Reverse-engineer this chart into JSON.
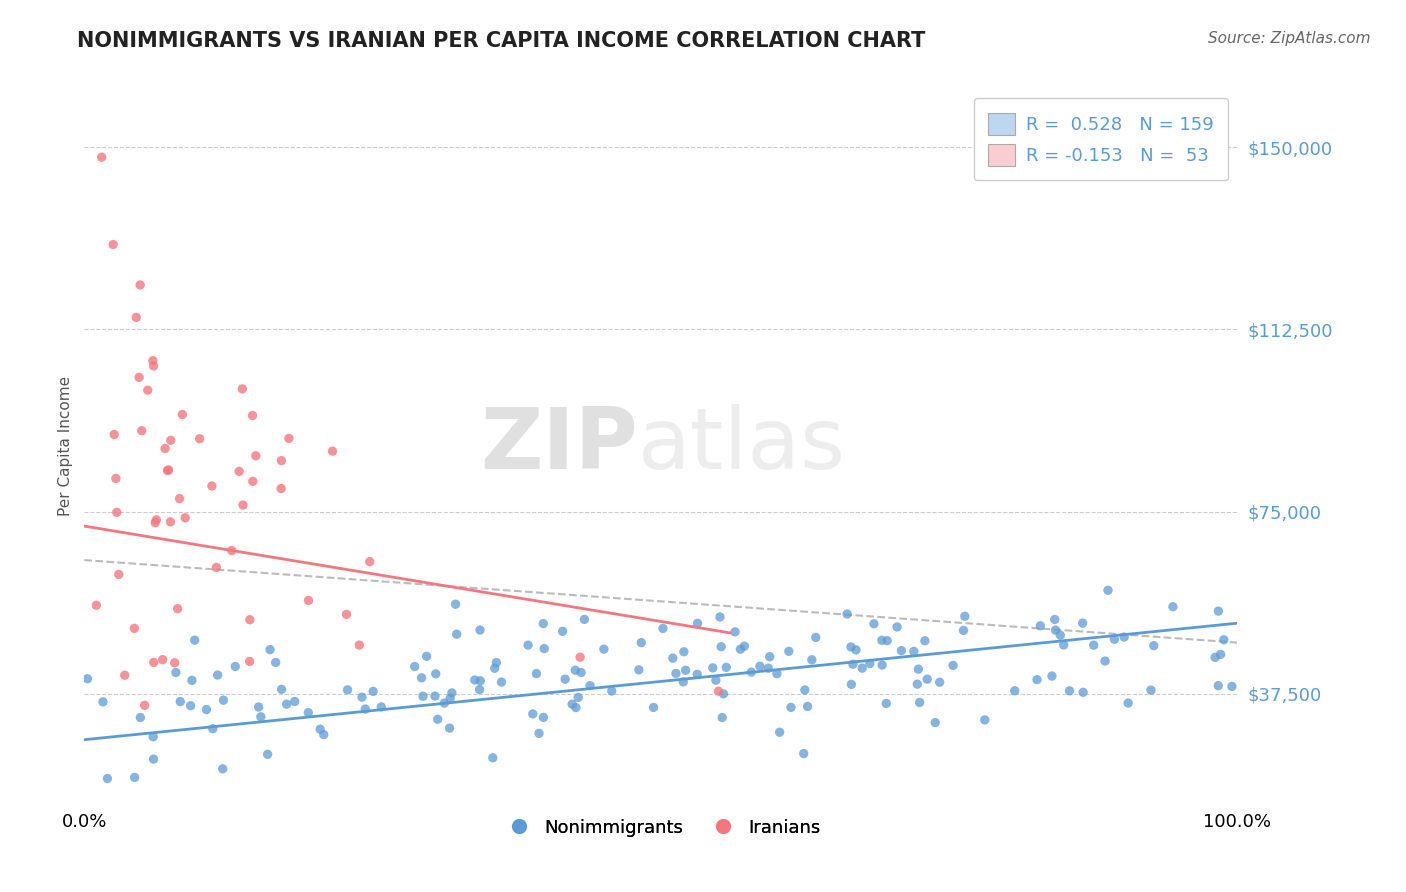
{
  "title": "NONIMMIGRANTS VS IRANIAN PER CAPITA INCOME CORRELATION CHART",
  "source": "Source: ZipAtlas.com",
  "ylabel": "Per Capita Income",
  "xlim": [
    0.0,
    1.0
  ],
  "ylim": [
    15000,
    162000
  ],
  "yticks": [
    37500,
    75000,
    112500,
    150000
  ],
  "ytick_labels": [
    "$37,500",
    "$75,000",
    "$112,500",
    "$150,000"
  ],
  "xtick_labels": [
    "0.0%",
    "100.0%"
  ],
  "blue_color": "#5B9BD5",
  "blue_fill": "#BDD7EE",
  "pink_color": "#F4777F",
  "pink_fill": "#FACDD0",
  "blue_R": 0.528,
  "blue_N": 159,
  "pink_R": -0.153,
  "pink_N": 53,
  "watermark_zip": "ZIP",
  "watermark_atlas": "atlas",
  "watermark_color": "#DDDDDD",
  "grid_color": "#CCCCCC",
  "background_color": "#FFFFFF",
  "blue_trend_x0": 0.0,
  "blue_trend_y0": 28000,
  "blue_trend_x1": 1.0,
  "blue_trend_y1": 52000,
  "pink_trend_x0": 0.0,
  "pink_trend_y0": 72000,
  "pink_trend_x1": 0.56,
  "pink_trend_y1": 50000,
  "grey_trend_x0": 0.0,
  "grey_trend_y0": 65000,
  "grey_trend_x1": 1.0,
  "grey_trend_y1": 48000,
  "blue_seed": 123,
  "pink_seed": 456,
  "title_fontsize": 15,
  "source_fontsize": 11,
  "tick_fontsize": 13,
  "legend_fontsize": 13
}
